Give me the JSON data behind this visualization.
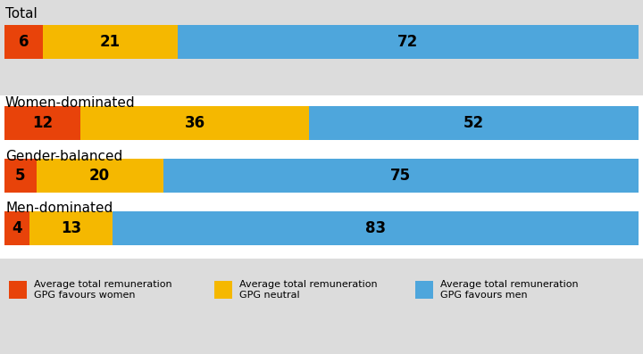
{
  "categories": [
    "Total",
    "Women-dominated",
    "Gender-balanced",
    "Men-dominated"
  ],
  "values_women": [
    6,
    12,
    5,
    4
  ],
  "values_neutral": [
    21,
    36,
    20,
    13
  ],
  "values_men": [
    72,
    52,
    75,
    83
  ],
  "color_women": "#E8430A",
  "color_neutral": "#F5B800",
  "color_men": "#4EA6DC",
  "color_bg_gray": "#DCDCDC",
  "color_bg_white": "#FFFFFF",
  "legend_labels": [
    "Average total remuneration\nGPG favours women",
    "Average total remuneration\nGPG neutral",
    "Average total remuneration\nGPG favours men"
  ],
  "label_fontsize": 11,
  "bar_label_fontsize": 12,
  "legend_fontsize": 8
}
